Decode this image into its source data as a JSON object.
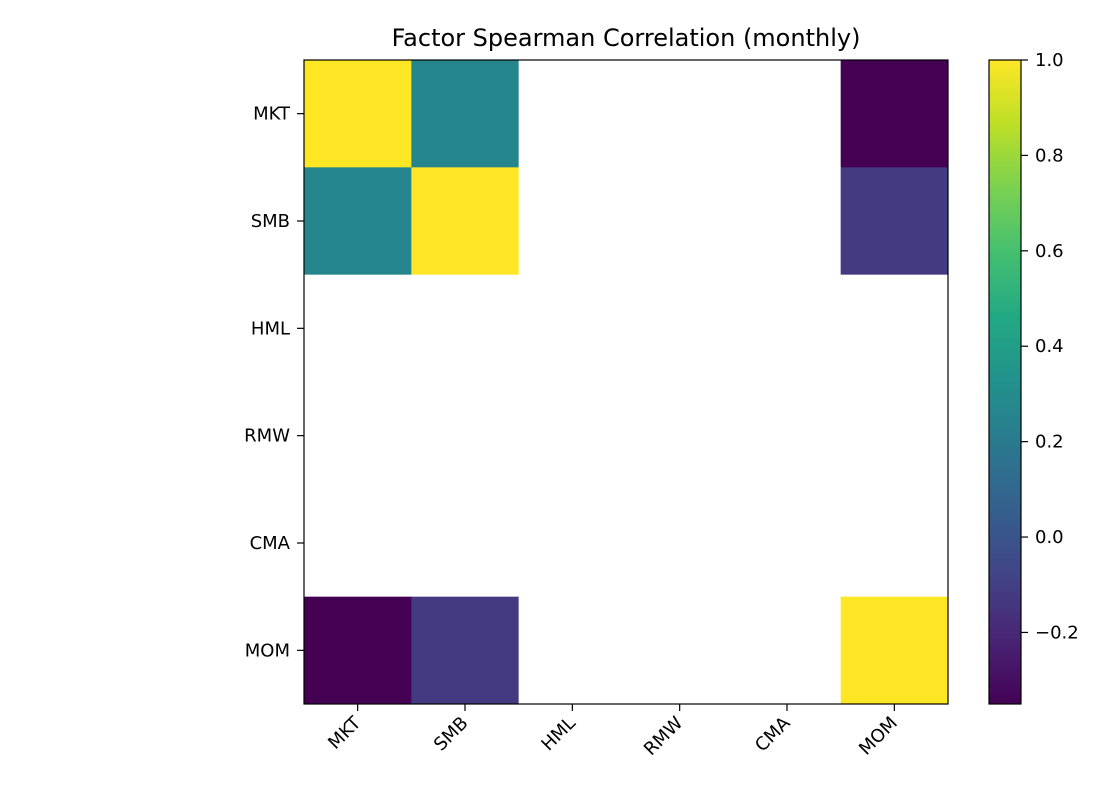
{
  "chart_data": {
    "type": "heatmap",
    "title": "Factor Spearman Correlation (monthly)",
    "x_categories": [
      "MKT",
      "SMB",
      "HML",
      "RMW",
      "CMA",
      "MOM"
    ],
    "y_categories": [
      "MKT",
      "SMB",
      "HML",
      "RMW",
      "CMA",
      "MOM"
    ],
    "values": [
      [
        1.0,
        0.26,
        null,
        null,
        null,
        -0.35
      ],
      [
        0.26,
        1.0,
        null,
        null,
        null,
        -0.12
      ],
      [
        null,
        null,
        null,
        null,
        null,
        null
      ],
      [
        null,
        null,
        null,
        null,
        null,
        null
      ],
      [
        null,
        null,
        null,
        null,
        null,
        null
      ],
      [
        -0.35,
        -0.12,
        null,
        null,
        null,
        1.0
      ]
    ],
    "colormap": "viridis",
    "color_range": [
      -0.35,
      1.0
    ],
    "colorbar_ticks": [
      {
        "value": 1.0,
        "label": "1.0"
      },
      {
        "value": 0.8,
        "label": "0.8"
      },
      {
        "value": 0.6,
        "label": "0.6"
      },
      {
        "value": 0.4,
        "label": "0.4"
      },
      {
        "value": 0.2,
        "label": "0.2"
      },
      {
        "value": 0.0,
        "label": "0.0"
      },
      {
        "value": -0.2,
        "label": "−0.2"
      }
    ],
    "missing_color": "#ffffff",
    "grid": false
  }
}
